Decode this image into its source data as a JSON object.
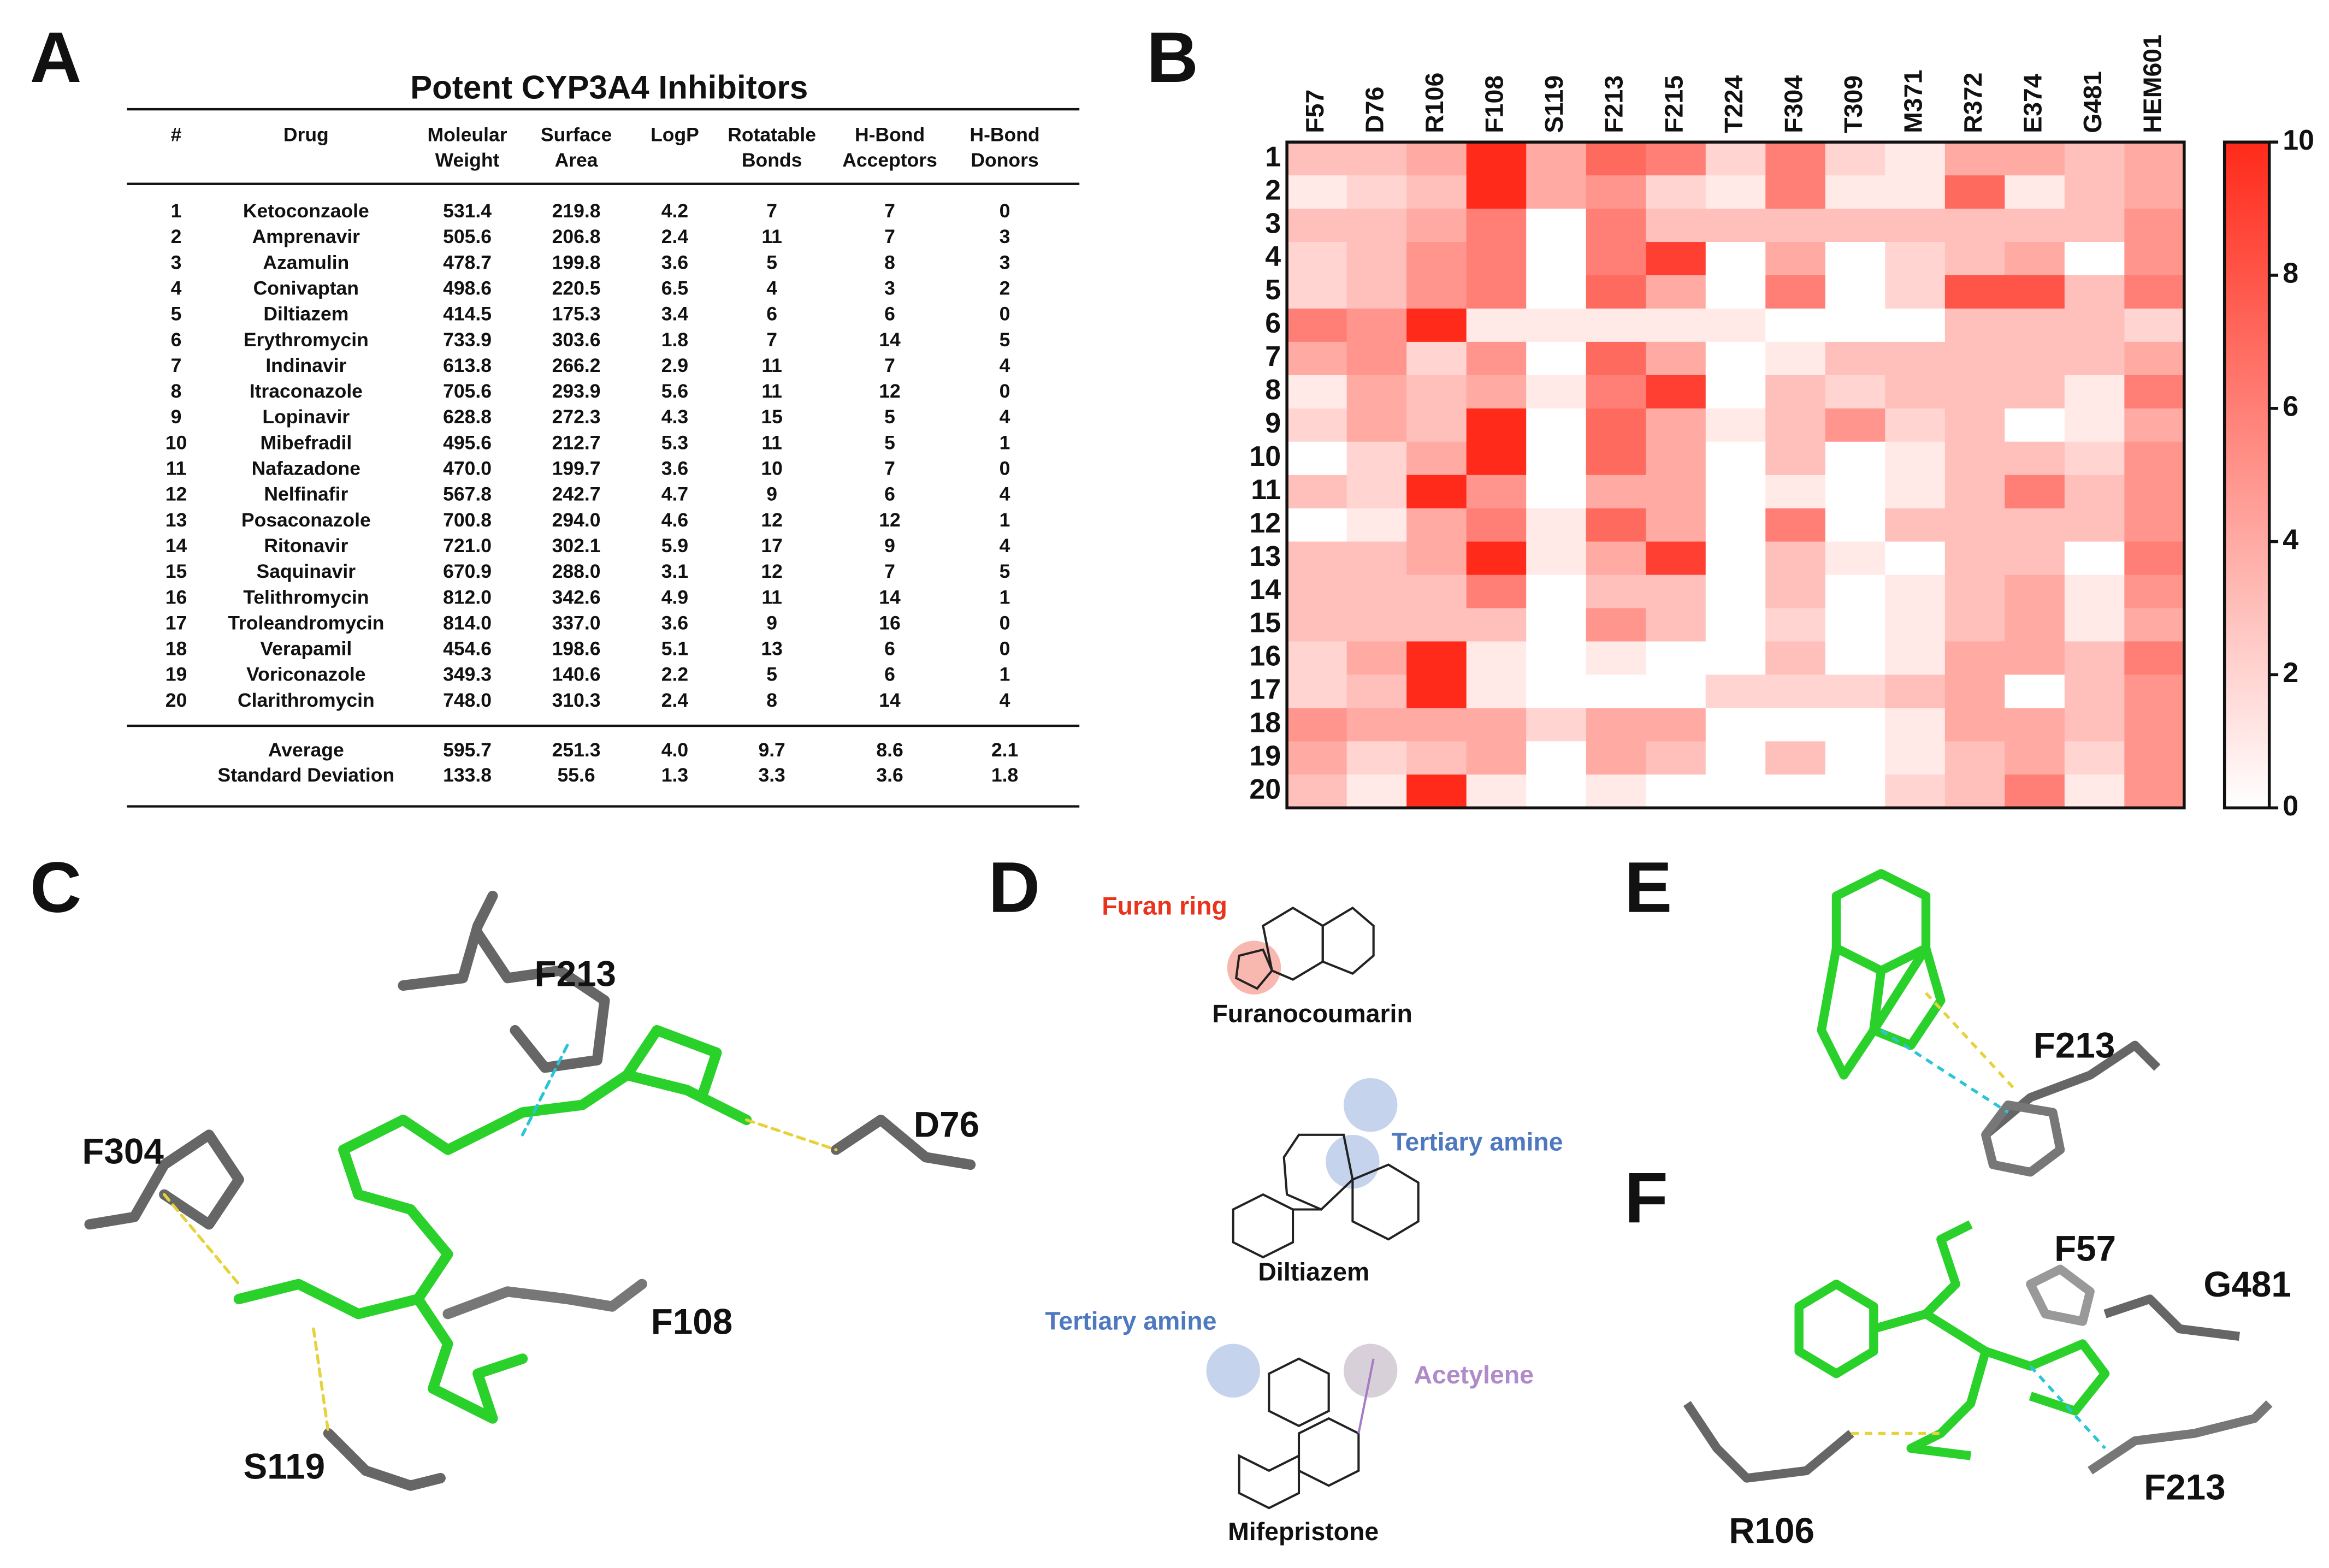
{
  "panels": {
    "a": "A",
    "b": "B",
    "c": "C",
    "d": "D",
    "e": "E",
    "f": "F"
  },
  "table": {
    "title": "Potent CYP3A4 Inhibitors",
    "headers": [
      [
        "#"
      ],
      [
        "Drug"
      ],
      [
        "Moleular",
        "Weight"
      ],
      [
        "Surface",
        "Area"
      ],
      [
        "LogP"
      ],
      [
        "Rotatable",
        "Bonds"
      ],
      [
        "H-Bond",
        "Acceptors"
      ],
      [
        "H-Bond",
        "Donors"
      ]
    ],
    "rows": [
      [
        "1",
        "Ketoconzaole",
        "531.4",
        "219.8",
        "4.2",
        "7",
        "7",
        "0"
      ],
      [
        "2",
        "Amprenavir",
        "505.6",
        "206.8",
        "2.4",
        "11",
        "7",
        "3"
      ],
      [
        "3",
        "Azamulin",
        "478.7",
        "199.8",
        "3.6",
        "5",
        "8",
        "3"
      ],
      [
        "4",
        "Conivaptan",
        "498.6",
        "220.5",
        "6.5",
        "4",
        "3",
        "2"
      ],
      [
        "5",
        "Diltiazem",
        "414.5",
        "175.3",
        "3.4",
        "6",
        "6",
        "0"
      ],
      [
        "6",
        "Erythromycin",
        "733.9",
        "303.6",
        "1.8",
        "7",
        "14",
        "5"
      ],
      [
        "7",
        "Indinavir",
        "613.8",
        "266.2",
        "2.9",
        "11",
        "7",
        "4"
      ],
      [
        "8",
        "Itraconazole",
        "705.6",
        "293.9",
        "5.6",
        "11",
        "12",
        "0"
      ],
      [
        "9",
        "Lopinavir",
        "628.8",
        "272.3",
        "4.3",
        "15",
        "5",
        "4"
      ],
      [
        "10",
        "Mibefradil",
        "495.6",
        "212.7",
        "5.3",
        "11",
        "5",
        "1"
      ],
      [
        "11",
        "Nafazadone",
        "470.0",
        "199.7",
        "3.6",
        "10",
        "7",
        "0"
      ],
      [
        "12",
        "Nelfinafir",
        "567.8",
        "242.7",
        "4.7",
        "9",
        "6",
        "4"
      ],
      [
        "13",
        "Posaconazole",
        "700.8",
        "294.0",
        "4.6",
        "12",
        "12",
        "1"
      ],
      [
        "14",
        "Ritonavir",
        "721.0",
        "302.1",
        "5.9",
        "17",
        "9",
        "4"
      ],
      [
        "15",
        "Saquinavir",
        "670.9",
        "288.0",
        "3.1",
        "12",
        "7",
        "5"
      ],
      [
        "16",
        "Telithromycin",
        "812.0",
        "342.6",
        "4.9",
        "11",
        "14",
        "1"
      ],
      [
        "17",
        "Troleandromycin",
        "814.0",
        "337.0",
        "3.6",
        "9",
        "16",
        "0"
      ],
      [
        "18",
        "Verapamil",
        "454.6",
        "198.6",
        "5.1",
        "13",
        "6",
        "0"
      ],
      [
        "19",
        "Voriconazole",
        "349.3",
        "140.6",
        "2.2",
        "5",
        "6",
        "1"
      ],
      [
        "20",
        "Clarithromycin",
        "748.0",
        "310.3",
        "2.4",
        "8",
        "14",
        "4"
      ]
    ],
    "summary": [
      [
        "Average",
        "595.7",
        "251.3",
        "4.0",
        "9.7",
        "8.6",
        "2.1"
      ],
      [
        "Standard Deviation",
        "133.8",
        "55.6",
        "1.3",
        "3.3",
        "3.6",
        "1.8"
      ]
    ]
  },
  "chart_data": {
    "type": "heatmap",
    "x_categories": [
      "F57",
      "D76",
      "R106",
      "F108",
      "S119",
      "F213",
      "F215",
      "T224",
      "F304",
      "T309",
      "M371",
      "R372",
      "E374",
      "G481",
      "HEM601"
    ],
    "y_categories": [
      "1",
      "2",
      "3",
      "4",
      "5",
      "6",
      "7",
      "8",
      "9",
      "10",
      "11",
      "12",
      "13",
      "14",
      "15",
      "16",
      "17",
      "18",
      "19",
      "20"
    ],
    "values": [
      [
        3,
        3,
        4,
        10,
        4,
        7,
        6,
        2,
        6,
        2,
        1,
        4,
        4,
        3,
        4
      ],
      [
        1,
        2,
        3,
        10,
        4,
        5,
        2,
        1,
        6,
        1,
        1,
        7,
        1,
        3,
        4
      ],
      [
        3,
        3,
        4,
        6,
        0,
        6,
        3,
        3,
        3,
        3,
        3,
        3,
        3,
        3,
        5
      ],
      [
        2,
        3,
        5,
        6,
        0,
        6,
        9,
        0,
        4,
        0,
        2,
        3,
        4,
        0,
        5
      ],
      [
        2,
        3,
        5,
        6,
        0,
        7,
        4,
        0,
        6,
        0,
        2,
        8,
        8,
        3,
        6
      ],
      [
        6,
        5,
        10,
        1,
        1,
        1,
        1,
        1,
        0,
        0,
        0,
        3,
        3,
        3,
        2
      ],
      [
        4,
        5,
        2,
        5,
        0,
        7,
        4,
        0,
        1,
        3,
        3,
        3,
        3,
        3,
        4
      ],
      [
        1,
        4,
        3,
        4,
        1,
        6,
        9,
        0,
        3,
        2,
        3,
        3,
        3,
        1,
        6
      ],
      [
        2,
        4,
        3,
        10,
        0,
        7,
        4,
        1,
        3,
        5,
        2,
        3,
        0,
        1,
        4
      ],
      [
        0,
        2,
        4,
        10,
        0,
        7,
        4,
        0,
        3,
        0,
        1,
        3,
        3,
        2,
        5
      ],
      [
        3,
        2,
        10,
        5,
        0,
        4,
        4,
        0,
        1,
        0,
        1,
        3,
        6,
        3,
        5
      ],
      [
        0,
        1,
        4,
        6,
        1,
        7,
        4,
        0,
        6,
        0,
        3,
        3,
        3,
        3,
        5
      ],
      [
        3,
        3,
        4,
        10,
        1,
        4,
        9,
        0,
        3,
        1,
        0,
        3,
        3,
        0,
        6
      ],
      [
        3,
        3,
        3,
        6,
        0,
        3,
        3,
        0,
        3,
        0,
        1,
        3,
        4,
        1,
        5
      ],
      [
        3,
        3,
        3,
        3,
        0,
        5,
        3,
        0,
        2,
        0,
        1,
        3,
        4,
        1,
        4
      ],
      [
        2,
        4,
        10,
        1,
        0,
        1,
        0,
        0,
        3,
        0,
        1,
        4,
        4,
        3,
        6
      ],
      [
        2,
        3,
        10,
        1,
        0,
        0,
        0,
        2,
        2,
        2,
        3,
        4,
        0,
        3,
        5
      ],
      [
        5,
        4,
        4,
        4,
        2,
        4,
        4,
        0,
        0,
        0,
        1,
        4,
        4,
        3,
        5
      ],
      [
        4,
        2,
        3,
        4,
        0,
        4,
        3,
        0,
        3,
        0,
        1,
        3,
        4,
        2,
        5
      ],
      [
        3,
        1,
        10,
        1,
        0,
        1,
        0,
        0,
        0,
        0,
        2,
        3,
        6,
        1,
        5
      ]
    ],
    "zlim": [
      0,
      10
    ],
    "colorbar_ticks": [
      0,
      2,
      4,
      6,
      8,
      10
    ],
    "colormap": [
      "#ffffff",
      "#ff2a1a"
    ]
  },
  "panel_c": {
    "labels": [
      "F213",
      "F304",
      "D76",
      "F108",
      "S119"
    ]
  },
  "panel_d": {
    "furan": "Furan ring",
    "furanocoumarin": "Furanocoumarin",
    "amine1": "Tertiary amine",
    "diltiazem": "Diltiazem",
    "amine2": "Tertiary amine",
    "acetylene": "Acetylene",
    "mifepristone": "Mifepristone"
  },
  "panel_e": {
    "labels": [
      "F213"
    ]
  },
  "panel_f": {
    "labels": [
      "F57",
      "G481",
      "R106",
      "F213"
    ]
  }
}
